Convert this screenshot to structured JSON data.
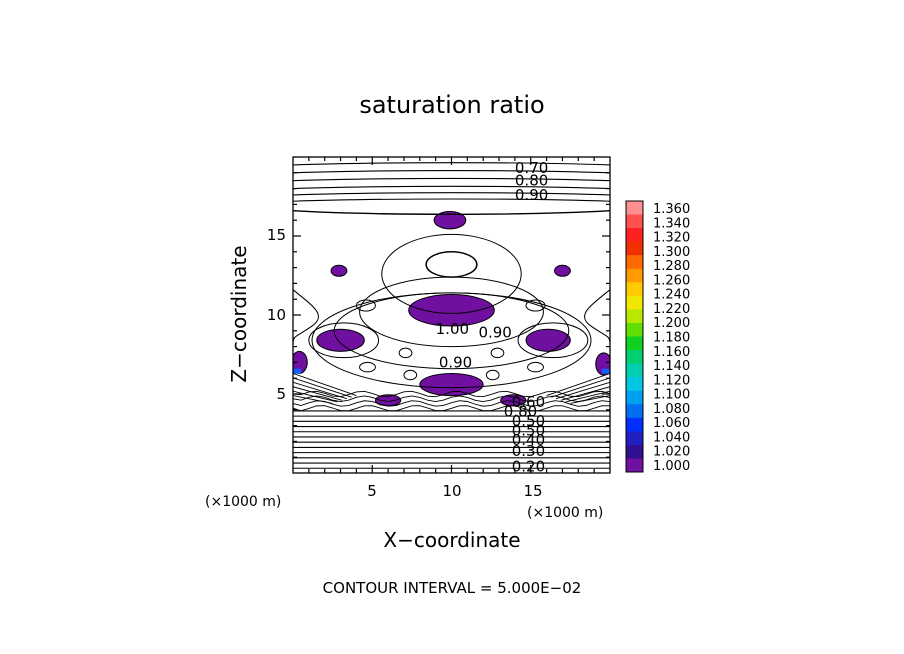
{
  "chart_data": {
    "type": "contour",
    "title": "saturation ratio",
    "xlabel": "X−coordinate",
    "ylabel": "Z−coordinate",
    "x_unit": "(×1000 m)",
    "y_unit": "(×1000 m)",
    "xlim": [
      0,
      20
    ],
    "ylim": [
      0,
      20
    ],
    "x_ticks": [
      "5",
      "10",
      "15"
    ],
    "y_ticks": [
      "5",
      "10",
      "15"
    ],
    "contour_interval_text": "CONTOUR INTERVAL = 5.000E−02",
    "contour_labels": [
      {
        "text": "0.70",
        "x": 14.0,
        "z": 19.3
      },
      {
        "text": "0.80",
        "x": 14.0,
        "z": 18.5
      },
      {
        "text": "0.90",
        "x": 14.0,
        "z": 17.6
      },
      {
        "text": "1.00",
        "x": 9.0,
        "z": 9.1
      },
      {
        "text": "0.90",
        "x": 11.7,
        "z": 8.9
      },
      {
        "text": "0.90",
        "x": 9.2,
        "z": 7.0
      },
      {
        "text": "0.60",
        "x": 13.8,
        "z": 4.5
      },
      {
        "text": "0.80",
        "x": 13.3,
        "z": 3.9
      },
      {
        "text": "0.50",
        "x": 13.8,
        "z": 3.3
      },
      {
        "text": "0.50",
        "x": 13.8,
        "z": 2.7
      },
      {
        "text": "0.40",
        "x": 13.8,
        "z": 2.1
      },
      {
        "text": "0.30",
        "x": 13.8,
        "z": 1.4
      },
      {
        "text": "0.20",
        "x": 13.8,
        "z": 0.4
      }
    ],
    "colorbar": {
      "labels": [
        "1.360",
        "1.340",
        "1.320",
        "1.300",
        "1.280",
        "1.260",
        "1.240",
        "1.220",
        "1.200",
        "1.180",
        "1.160",
        "1.140",
        "1.120",
        "1.100",
        "1.080",
        "1.060",
        "1.040",
        "1.020",
        "1.000"
      ],
      "colors": [
        "#ff9090",
        "#ff5050",
        "#ff2020",
        "#f23000",
        "#ff6a00",
        "#ff9a00",
        "#ffca00",
        "#f0e800",
        "#b8e800",
        "#60e000",
        "#10d020",
        "#00d070",
        "#00d0b0",
        "#00c8e0",
        "#00a0f0",
        "#0070f0",
        "#0030ff",
        "#2020c0",
        "#301090",
        "#7010a0"
      ]
    },
    "filled_regions": [
      {
        "x": 9.9,
        "z": 16.0,
        "rx": 1.0,
        "rz": 0.55,
        "level": "1.000"
      },
      {
        "x": 2.9,
        "z": 12.8,
        "rx": 0.5,
        "rz": 0.35,
        "level": "1.000"
      },
      {
        "x": 17.0,
        "z": 12.8,
        "rx": 0.5,
        "rz": 0.35,
        "level": "1.000"
      },
      {
        "x": 10.0,
        "z": 10.3,
        "rx": 2.7,
        "rz": 1.0,
        "level": "1.000"
      },
      {
        "x": 3.0,
        "z": 8.4,
        "rx": 1.5,
        "rz": 0.7,
        "level": "1.000"
      },
      {
        "x": 16.1,
        "z": 8.4,
        "rx": 1.4,
        "rz": 0.7,
        "level": "1.000"
      },
      {
        "x": 0.4,
        "z": 7.0,
        "rx": 0.5,
        "rz": 0.7,
        "level": "1.000"
      },
      {
        "x": 19.6,
        "z": 6.9,
        "rx": 0.5,
        "rz": 0.7,
        "level": "1.000"
      },
      {
        "x": 10.0,
        "z": 5.6,
        "rx": 2.0,
        "rz": 0.7,
        "level": "1.000"
      },
      {
        "x": 6.0,
        "z": 4.6,
        "rx": 0.8,
        "rz": 0.35,
        "level": "1.000"
      },
      {
        "x": 13.9,
        "z": 4.6,
        "rx": 0.8,
        "rz": 0.35,
        "level": "1.000"
      }
    ]
  }
}
